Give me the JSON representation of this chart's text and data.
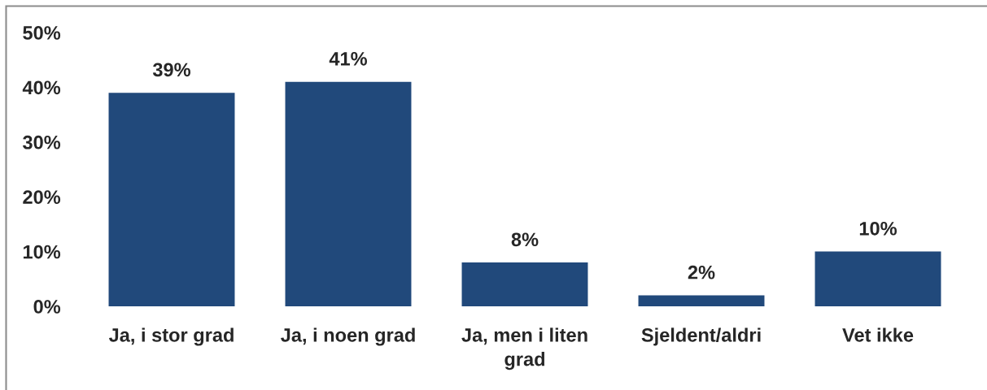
{
  "chart_data": {
    "type": "bar",
    "categories": [
      "Ja, i stor grad",
      "Ja, i noen grad",
      "Ja, men i liten grad",
      "Sjeldent/aldri",
      "Vet ikke"
    ],
    "values": [
      39,
      41,
      8,
      2,
      10
    ],
    "value_labels": [
      "39%",
      "41%",
      "8%",
      "2%",
      "10%"
    ],
    "color": "#21497b",
    "ylim": [
      0,
      50
    ],
    "yticks": [
      {
        "value": 0,
        "label": "0%"
      },
      {
        "value": 10,
        "label": "10%"
      },
      {
        "value": 20,
        "label": "20%"
      },
      {
        "value": 30,
        "label": "30%"
      },
      {
        "value": 40,
        "label": "40%"
      },
      {
        "value": 50,
        "label": "50%"
      }
    ],
    "grid": false
  }
}
